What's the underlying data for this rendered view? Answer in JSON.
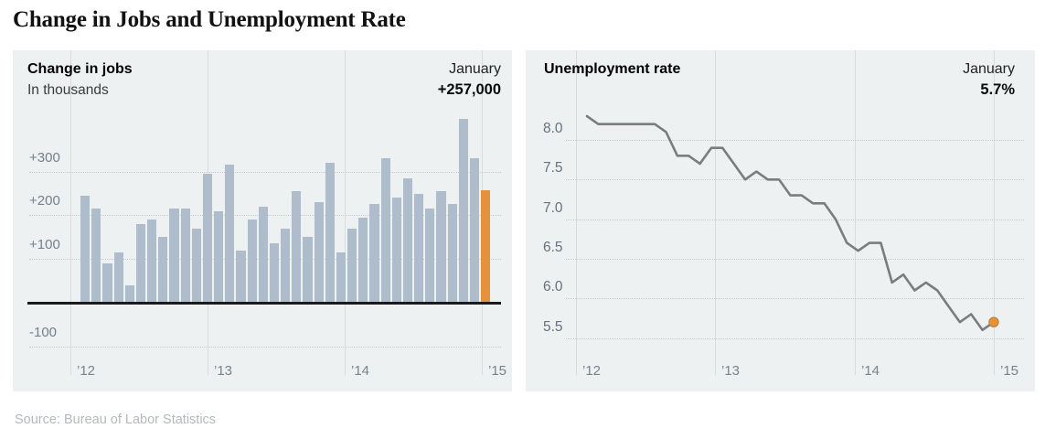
{
  "page": {
    "title": "Change in Jobs and Unemployment Rate",
    "source": "Source: Bureau of Labor Statistics"
  },
  "jobs_panel": {
    "title": "Change in jobs",
    "subtitle": "In thousands",
    "period_label": "January",
    "period_value": "+257,000"
  },
  "unemployment_panel": {
    "title": "Unemployment rate",
    "period_label": "January",
    "period_value": "5.7%"
  },
  "colors": {
    "panel_bg": "#eef1f2",
    "bar": "#afbccb",
    "highlight": "#e5923c",
    "line": "#7c7c7c",
    "dot": "#e5923c",
    "zero_axis": "#1b1b1b",
    "gridline": "#c6c8ca",
    "year_line": "#d9dbdd"
  },
  "chart_data": [
    {
      "type": "bar",
      "title": "Change in jobs",
      "ylabel": "In thousands",
      "months": [
        "Jan 2012",
        "Feb 2012",
        "Mar 2012",
        "Apr 2012",
        "May 2012",
        "Jun 2012",
        "Jul 2012",
        "Aug 2012",
        "Sep 2012",
        "Oct 2012",
        "Nov 2012",
        "Dec 2012",
        "Jan 2013",
        "Feb 2013",
        "Mar 2013",
        "Apr 2013",
        "May 2013",
        "Jun 2013",
        "Jul 2013",
        "Aug 2013",
        "Sep 2013",
        "Oct 2013",
        "Nov 2013",
        "Dec 2013",
        "Jan 2014",
        "Feb 2014",
        "Mar 2014",
        "Apr 2014",
        "May 2014",
        "Jun 2014",
        "Jul 2014",
        "Aug 2014",
        "Sep 2014",
        "Oct 2014",
        "Nov 2014",
        "Dec 2014",
        "Jan 2015"
      ],
      "values": [
        245,
        215,
        90,
        115,
        40,
        180,
        190,
        150,
        215,
        215,
        170,
        295,
        210,
        315,
        120,
        190,
        220,
        135,
        170,
        255,
        150,
        230,
        320,
        115,
        170,
        195,
        225,
        330,
        240,
        285,
        250,
        215,
        255,
        225,
        420,
        330,
        257
      ],
      "highlight_index": 36,
      "highlight_label": "January +257,000",
      "yticks": [
        {
          "label": "+300",
          "value": 300
        },
        {
          "label": "+200",
          "value": 200
        },
        {
          "label": "+100",
          "value": 100
        },
        {
          "label": "-100",
          "value": -100
        }
      ],
      "xticks": [
        "’12",
        "’13",
        "’14",
        "’15"
      ],
      "ylim": [
        -100,
        440
      ],
      "grid": "dotted horizontal plus solid year verticals, heavy zero baseline"
    },
    {
      "type": "line",
      "title": "Unemployment rate",
      "unit": "percent",
      "months": [
        "Jan 2012",
        "Feb 2012",
        "Mar 2012",
        "Apr 2012",
        "May 2012",
        "Jun 2012",
        "Jul 2012",
        "Aug 2012",
        "Sep 2012",
        "Oct 2012",
        "Nov 2012",
        "Dec 2012",
        "Jan 2013",
        "Feb 2013",
        "Mar 2013",
        "Apr 2013",
        "May 2013",
        "Jun 2013",
        "Jul 2013",
        "Aug 2013",
        "Sep 2013",
        "Oct 2013",
        "Nov 2013",
        "Dec 2013",
        "Jan 2014",
        "Feb 2014",
        "Mar 2014",
        "Apr 2014",
        "May 2014",
        "Jun 2014",
        "Jul 2014",
        "Aug 2014",
        "Sep 2014",
        "Oct 2014",
        "Nov 2014",
        "Dec 2014",
        "Jan 2015"
      ],
      "values": [
        8.3,
        8.2,
        8.2,
        8.2,
        8.2,
        8.2,
        8.2,
        8.1,
        7.8,
        7.8,
        7.7,
        7.9,
        7.9,
        7.7,
        7.5,
        7.6,
        7.5,
        7.5,
        7.3,
        7.3,
        7.2,
        7.2,
        7.0,
        6.7,
        6.6,
        6.7,
        6.7,
        6.2,
        6.3,
        6.1,
        6.2,
        6.1,
        5.9,
        5.7,
        5.8,
        5.6,
        5.7
      ],
      "end_dot": {
        "month": "Jan 2015",
        "value": 5.7,
        "label": "January 5.7%"
      },
      "yticks": [
        {
          "label": "8.0",
          "value": 8.0
        },
        {
          "label": "7.5",
          "value": 7.5
        },
        {
          "label": "7.0",
          "value": 7.0
        },
        {
          "label": "6.5",
          "value": 6.5
        },
        {
          "label": "6.0",
          "value": 6.0
        },
        {
          "label": "5.5",
          "value": 5.5
        }
      ],
      "xticks": [
        "’12",
        "’13",
        "’14",
        "’15"
      ],
      "ylim": [
        5.2,
        8.5
      ],
      "grid": "dotted horizontal plus solid year verticals"
    }
  ]
}
